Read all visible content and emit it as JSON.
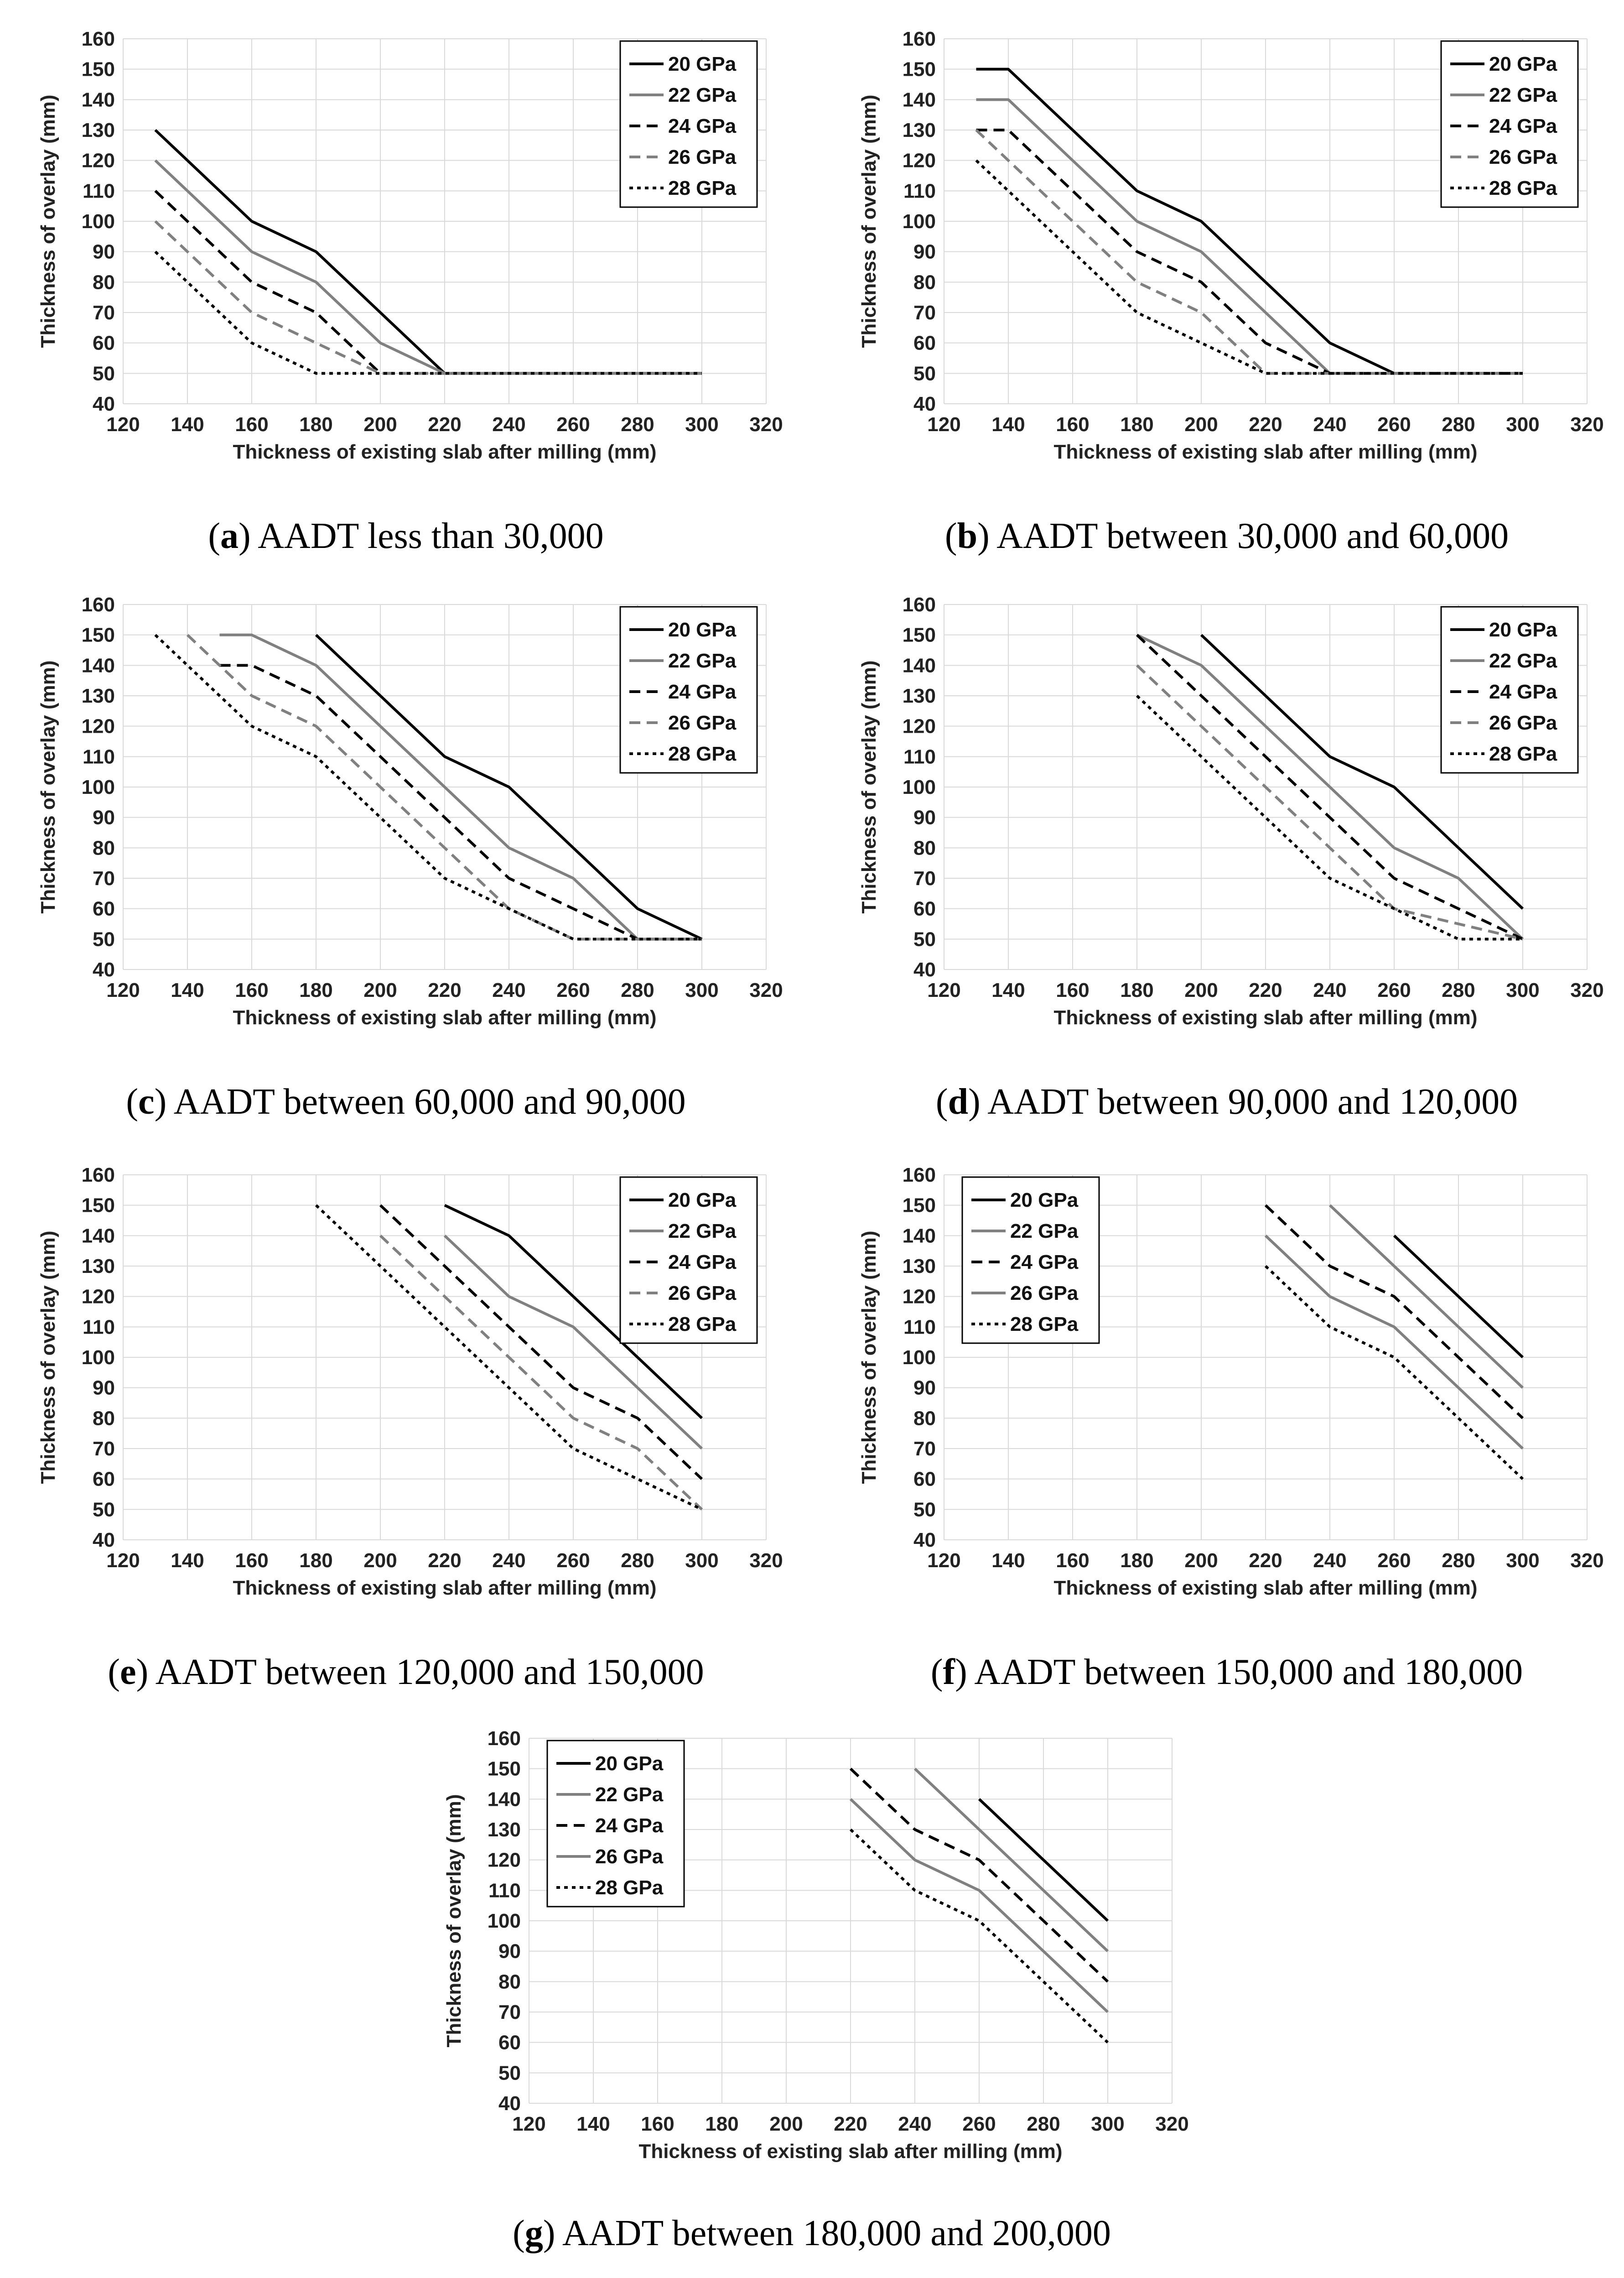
{
  "legend_placement": "top-right",
  "chart_data": [
    {
      "type": "line",
      "id": "a",
      "letter": "a",
      "caption": "AADT less than 30,000",
      "xlabel": "Thickness of existing slab after milling (mm)",
      "ylabel": "Thickness of overlay (mm)",
      "xlim": [
        120,
        320
      ],
      "ylim": [
        40,
        160
      ],
      "xticks": [
        120,
        140,
        160,
        180,
        200,
        220,
        240,
        260,
        280,
        300,
        320
      ],
      "yticks": [
        40,
        50,
        60,
        70,
        80,
        90,
        100,
        110,
        120,
        130,
        140,
        150,
        160
      ],
      "grid": true,
      "legend_position": "top-right",
      "series": [
        {
          "name": "20 GPa",
          "color": "#000000",
          "style": "solid",
          "x": [
            130,
            160,
            180,
            220,
            300
          ],
          "y": [
            130,
            100,
            90,
            50,
            50
          ]
        },
        {
          "name": "22 GPa",
          "color": "#808080",
          "style": "solid",
          "x": [
            130,
            160,
            180,
            200,
            220,
            300
          ],
          "y": [
            120,
            90,
            80,
            60,
            50,
            50
          ]
        },
        {
          "name": "24 GPa",
          "color": "#000000",
          "style": "dash",
          "x": [
            130,
            160,
            180,
            200,
            300
          ],
          "y": [
            110,
            80,
            70,
            50,
            50
          ]
        },
        {
          "name": "26 GPa",
          "color": "#808080",
          "style": "dash",
          "x": [
            130,
            160,
            200,
            300
          ],
          "y": [
            100,
            70,
            50,
            50
          ]
        },
        {
          "name": "28 GPa",
          "color": "#000000",
          "style": "dot",
          "x": [
            130,
            160,
            180,
            300
          ],
          "y": [
            90,
            60,
            50,
            50
          ]
        }
      ]
    },
    {
      "type": "line",
      "id": "b",
      "letter": "b",
      "caption": "AADT between 30,000 and 60,000",
      "xlabel": "Thickness of existing slab after milling (mm)",
      "ylabel": "Thickness of overlay (mm)",
      "xlim": [
        120,
        320
      ],
      "ylim": [
        40,
        160
      ],
      "xticks": [
        120,
        140,
        160,
        180,
        200,
        220,
        240,
        260,
        280,
        300,
        320
      ],
      "yticks": [
        40,
        50,
        60,
        70,
        80,
        90,
        100,
        110,
        120,
        130,
        140,
        150,
        160
      ],
      "grid": true,
      "legend_position": "top-right",
      "series": [
        {
          "name": "20 GPa",
          "color": "#000000",
          "style": "solid",
          "x": [
            130,
            140,
            180,
            200,
            240,
            260,
            300
          ],
          "y": [
            150,
            150,
            110,
            100,
            60,
            50,
            50
          ]
        },
        {
          "name": "22 GPa",
          "color": "#808080",
          "style": "solid",
          "x": [
            130,
            140,
            180,
            200,
            240,
            300
          ],
          "y": [
            140,
            140,
            100,
            90,
            50,
            50
          ]
        },
        {
          "name": "24 GPa",
          "color": "#000000",
          "style": "dash",
          "x": [
            130,
            140,
            180,
            200,
            220,
            240,
            300
          ],
          "y": [
            130,
            130,
            90,
            80,
            60,
            50,
            50
          ]
        },
        {
          "name": "26 GPa",
          "color": "#808080",
          "style": "dash",
          "x": [
            130,
            180,
            200,
            220,
            300
          ],
          "y": [
            130,
            80,
            70,
            50,
            50
          ]
        },
        {
          "name": "28 GPa",
          "color": "#000000",
          "style": "dot",
          "x": [
            130,
            180,
            220,
            300
          ],
          "y": [
            120,
            70,
            50,
            50
          ]
        }
      ]
    },
    {
      "type": "line",
      "id": "c",
      "letter": "c",
      "caption": "AADT between 60,000 and 90,000",
      "xlabel": "Thickness of existing slab after milling (mm)",
      "ylabel": "Thickness of overlay (mm)",
      "xlim": [
        120,
        320
      ],
      "ylim": [
        40,
        160
      ],
      "xticks": [
        120,
        140,
        160,
        180,
        200,
        220,
        240,
        260,
        280,
        300,
        320
      ],
      "yticks": [
        40,
        50,
        60,
        70,
        80,
        90,
        100,
        110,
        120,
        130,
        140,
        150,
        160
      ],
      "grid": true,
      "legend_position": "top-right",
      "series": [
        {
          "name": "20 GPa",
          "color": "#000000",
          "style": "solid",
          "x": [
            180,
            220,
            240,
            280,
            300
          ],
          "y": [
            150,
            110,
            100,
            60,
            50
          ]
        },
        {
          "name": "22 GPa",
          "color": "#808080",
          "style": "solid",
          "x": [
            150,
            160,
            180,
            240,
            260,
            280,
            300
          ],
          "y": [
            150,
            150,
            140,
            80,
            70,
            50,
            50
          ]
        },
        {
          "name": "24 GPa",
          "color": "#000000",
          "style": "dash",
          "x": [
            150,
            160,
            180,
            240,
            280,
            300
          ],
          "y": [
            140,
            140,
            130,
            70,
            50,
            50
          ]
        },
        {
          "name": "26 GPa",
          "color": "#808080",
          "style": "dash",
          "x": [
            140,
            160,
            180,
            240,
            260,
            300
          ],
          "y": [
            150,
            130,
            120,
            60,
            50,
            50
          ]
        },
        {
          "name": "28 GPa",
          "color": "#000000",
          "style": "dot",
          "x": [
            130,
            160,
            180,
            220,
            260,
            300
          ],
          "y": [
            150,
            120,
            110,
            70,
            50,
            50
          ]
        }
      ]
    },
    {
      "type": "line",
      "id": "d",
      "letter": "d",
      "caption": "AADT between 90,000 and 120,000",
      "xlabel": "Thickness of existing slab after milling (mm)",
      "ylabel": "Thickness of overlay (mm)",
      "xlim": [
        120,
        320
      ],
      "ylim": [
        40,
        160
      ],
      "xticks": [
        120,
        140,
        160,
        180,
        200,
        220,
        240,
        260,
        280,
        300,
        320
      ],
      "yticks": [
        40,
        50,
        60,
        70,
        80,
        90,
        100,
        110,
        120,
        130,
        140,
        150,
        160
      ],
      "grid": true,
      "legend_position": "top-right",
      "series": [
        {
          "name": "20 GPa",
          "color": "#000000",
          "style": "solid",
          "x": [
            200,
            240,
            260,
            300
          ],
          "y": [
            150,
            110,
            100,
            60
          ]
        },
        {
          "name": "22 GPa",
          "color": "#808080",
          "style": "solid",
          "x": [
            180,
            200,
            260,
            280,
            300
          ],
          "y": [
            150,
            140,
            80,
            70,
            50
          ]
        },
        {
          "name": "24 GPa",
          "color": "#000000",
          "style": "dash",
          "x": [
            180,
            260,
            300
          ],
          "y": [
            150,
            70,
            50
          ]
        },
        {
          "name": "26 GPa",
          "color": "#808080",
          "style": "dash",
          "x": [
            180,
            260,
            300
          ],
          "y": [
            140,
            60,
            50
          ]
        },
        {
          "name": "28 GPa",
          "color": "#000000",
          "style": "dot",
          "x": [
            180,
            240,
            280,
            300
          ],
          "y": [
            130,
            70,
            50,
            50
          ]
        }
      ]
    },
    {
      "type": "line",
      "id": "e",
      "letter": "e",
      "caption": "AADT between 120,000 and 150,000",
      "xlabel": "Thickness of existing slab after milling (mm)",
      "ylabel": "Thickness of overlay (mm)",
      "xlim": [
        120,
        320
      ],
      "ylim": [
        40,
        160
      ],
      "xticks": [
        120,
        140,
        160,
        180,
        200,
        220,
        240,
        260,
        280,
        300,
        320
      ],
      "yticks": [
        40,
        50,
        60,
        70,
        80,
        90,
        100,
        110,
        120,
        130,
        140,
        150,
        160
      ],
      "grid": true,
      "legend_position": "top-right",
      "series": [
        {
          "name": "20 GPa",
          "color": "#000000",
          "style": "solid",
          "x": [
            220,
            240,
            300
          ],
          "y": [
            150,
            140,
            80
          ]
        },
        {
          "name": "22 GPa",
          "color": "#808080",
          "style": "solid",
          "x": [
            220,
            240,
            260,
            300
          ],
          "y": [
            140,
            120,
            110,
            70
          ]
        },
        {
          "name": "24 GPa",
          "color": "#000000",
          "style": "dash",
          "x": [
            200,
            260,
            280,
            300
          ],
          "y": [
            150,
            90,
            80,
            60
          ]
        },
        {
          "name": "26 GPa",
          "color": "#808080",
          "style": "dash",
          "x": [
            200,
            260,
            280,
            300
          ],
          "y": [
            140,
            80,
            70,
            50
          ]
        },
        {
          "name": "28 GPa",
          "color": "#000000",
          "style": "dot",
          "x": [
            180,
            260,
            300
          ],
          "y": [
            150,
            70,
            50
          ]
        }
      ]
    },
    {
      "type": "line",
      "id": "f",
      "letter": "f",
      "caption": "AADT between 150,000 and 180,000",
      "xlabel": "Thickness of existing slab after milling (mm)",
      "ylabel": "Thickness of overlay (mm)",
      "xlim": [
        120,
        320
      ],
      "ylim": [
        40,
        160
      ],
      "xticks": [
        120,
        140,
        160,
        180,
        200,
        220,
        240,
        260,
        280,
        300,
        320
      ],
      "yticks": [
        40,
        50,
        60,
        70,
        80,
        90,
        100,
        110,
        120,
        130,
        140,
        150,
        160
      ],
      "grid": true,
      "legend_position": "top-left",
      "series": [
        {
          "name": "20 GPa",
          "color": "#000000",
          "style": "solid",
          "x": [
            260,
            300
          ],
          "y": [
            140,
            100
          ]
        },
        {
          "name": "22 GPa",
          "color": "#808080",
          "style": "solid",
          "x": [
            240,
            300
          ],
          "y": [
            150,
            90
          ]
        },
        {
          "name": "24 GPa",
          "color": "#000000",
          "style": "dash",
          "x": [
            220,
            240,
            260,
            300
          ],
          "y": [
            150,
            130,
            120,
            80
          ]
        },
        {
          "name": "26 GPa",
          "color": "#808080",
          "style": "solid",
          "x": [
            220,
            240,
            260,
            300
          ],
          "y": [
            140,
            120,
            110,
            70
          ]
        },
        {
          "name": "28 GPa",
          "color": "#000000",
          "style": "dot",
          "x": [
            220,
            240,
            260,
            300
          ],
          "y": [
            130,
            110,
            100,
            60
          ]
        }
      ]
    },
    {
      "type": "line",
      "id": "g",
      "letter": "g",
      "caption": "AADT between 180,000 and 200,000",
      "xlabel": "Thickness of existing slab after milling (mm)",
      "ylabel": "Thickness of overlay (mm)",
      "xlim": [
        120,
        320
      ],
      "ylim": [
        40,
        160
      ],
      "xticks": [
        120,
        140,
        160,
        180,
        200,
        220,
        240,
        260,
        280,
        300,
        320
      ],
      "yticks": [
        40,
        50,
        60,
        70,
        80,
        90,
        100,
        110,
        120,
        130,
        140,
        150,
        160
      ],
      "grid": true,
      "legend_position": "top-left",
      "series": [
        {
          "name": "20 GPa",
          "color": "#000000",
          "style": "solid",
          "x": [
            260,
            300
          ],
          "y": [
            140,
            100
          ]
        },
        {
          "name": "22 GPa",
          "color": "#808080",
          "style": "solid",
          "x": [
            240,
            300
          ],
          "y": [
            150,
            90
          ]
        },
        {
          "name": "24 GPa",
          "color": "#000000",
          "style": "dash",
          "x": [
            220,
            240,
            260,
            300
          ],
          "y": [
            150,
            130,
            120,
            80
          ]
        },
        {
          "name": "26 GPa",
          "color": "#808080",
          "style": "solid",
          "x": [
            220,
            240,
            260,
            300
          ],
          "y": [
            140,
            120,
            110,
            70
          ]
        },
        {
          "name": "28 GPa",
          "color": "#000000",
          "style": "dot",
          "x": [
            220,
            240,
            260,
            300
          ],
          "y": [
            130,
            110,
            100,
            60
          ]
        }
      ]
    }
  ]
}
